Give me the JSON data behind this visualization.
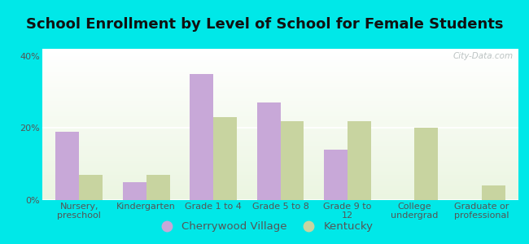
{
  "title": "School Enrollment by Level of School for Female Students",
  "categories": [
    "Nursery,\npreschool",
    "Kindergarten",
    "Grade 1 to 4",
    "Grade 5 to 8",
    "Grade 9 to\n12",
    "College\nundergrad",
    "Graduate or\nprofessional"
  ],
  "cherrywood_values": [
    19,
    5,
    35,
    27,
    14,
    0,
    0
  ],
  "kentucky_values": [
    7,
    7,
    23,
    22,
    22,
    20,
    4
  ],
  "cherrywood_color": "#c8a8d8",
  "kentucky_color": "#c8d4a0",
  "bar_width": 0.35,
  "ylim": [
    0,
    42
  ],
  "yticks": [
    0,
    20,
    40
  ],
  "ytick_labels": [
    "0%",
    "20%",
    "40%"
  ],
  "legend_labels": [
    "Cherrywood Village",
    "Kentucky"
  ],
  "background_color": "#00e8e8",
  "watermark": "City-Data.com",
  "title_fontsize": 13,
  "tick_fontsize": 8,
  "legend_fontsize": 9.5,
  "title_color": "#111111",
  "tick_color": "#555555"
}
